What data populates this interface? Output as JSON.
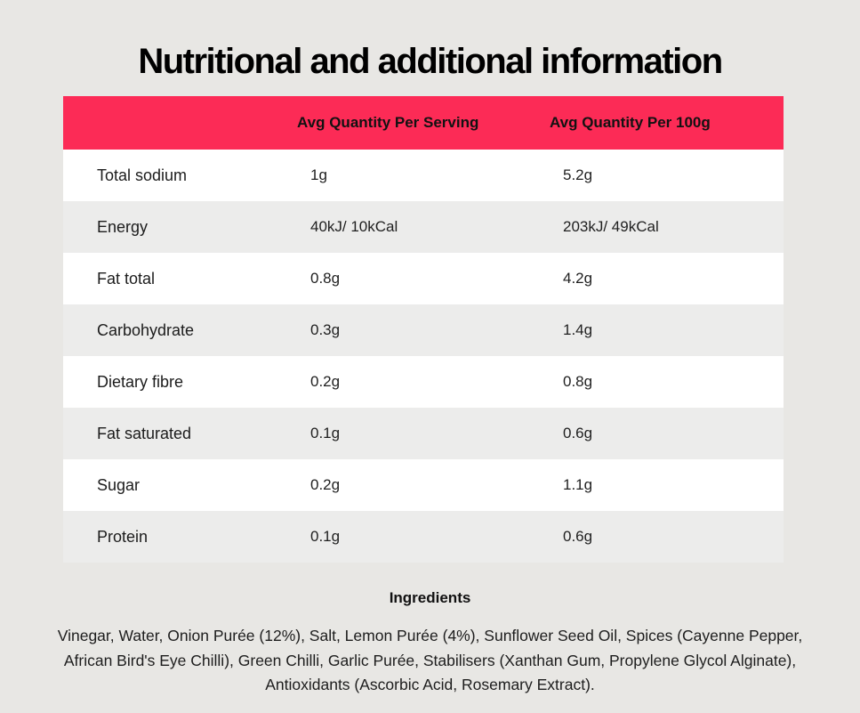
{
  "page": {
    "title": "Nutritional and additional information",
    "background_color": "#e8e7e4",
    "accent_color": "#fc2b56",
    "alt_row_color": "#ececeb"
  },
  "table": {
    "headers": {
      "col_label": "",
      "col_serving": "Avg Quantity Per Serving",
      "col_100g": "Avg Quantity Per 100g"
    },
    "rows": [
      {
        "label": "Total sodium",
        "per_serving": "1g",
        "per_100g": "5.2g"
      },
      {
        "label": "Energy",
        "per_serving": "40kJ/ 10kCal",
        "per_100g": "203kJ/ 49kCal"
      },
      {
        "label": "Fat total",
        "per_serving": "0.8g",
        "per_100g": "4.2g"
      },
      {
        "label": "Carbohydrate",
        "per_serving": "0.3g",
        "per_100g": "1.4g"
      },
      {
        "label": "Dietary fibre",
        "per_serving": "0.2g",
        "per_100g": "0.8g"
      },
      {
        "label": "Fat saturated",
        "per_serving": "0.1g",
        "per_100g": "0.6g"
      },
      {
        "label": "Sugar",
        "per_serving": "0.2g",
        "per_100g": "1.1g"
      },
      {
        "label": "Protein",
        "per_serving": "0.1g",
        "per_100g": "0.6g"
      }
    ]
  },
  "ingredients": {
    "heading": "Ingredients",
    "lines": [
      "Vinegar, Water, Onion Purée (12%), Salt, Lemon Purée (4%), Sunflower Seed Oil, Spices (Cayenne Pepper,",
      "African Bird's Eye Chilli), Green Chilli, Garlic Purée, Stabilisers (Xanthan Gum, Propylene Glycol Alginate),",
      "Antioxidants (Ascorbic Acid, Rosemary Extract)."
    ],
    "full_text": "Vinegar, Water, Onion Purée (12%), Salt, Lemon Purée (4%), Sunflower Seed Oil, Spices (Cayenne Pepper, African Bird's Eye Chilli), Green Chilli, Garlic Purée, Stabilisers (Xanthan Gum, Propylene Glycol Alginate), Antioxidants (Ascorbic Acid, Rosemary Extract)."
  }
}
